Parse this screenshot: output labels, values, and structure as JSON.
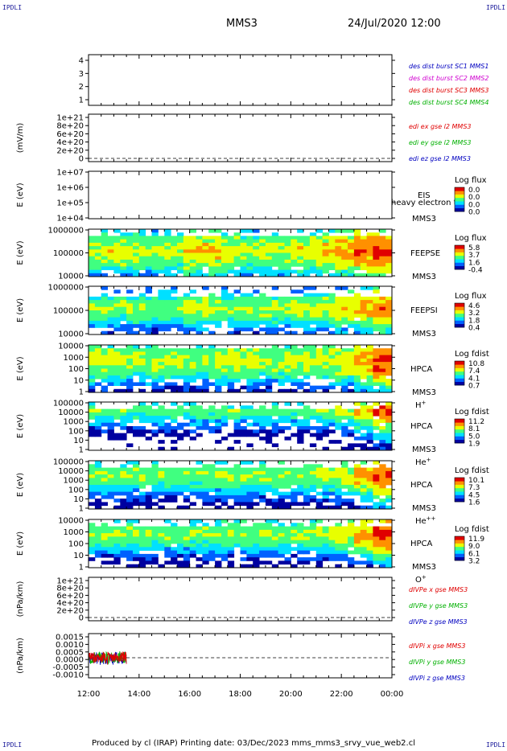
{
  "header": {
    "corner_label": "IPDLI",
    "spacecraft": "MMS3",
    "datetime": "24/Jul/2020 12:00"
  },
  "footer": {
    "text": "Produced by cl (IRAP)   Printing date: 03/Dec/2023   mms_mms3_srvy_vue_web2.cl"
  },
  "colors": {
    "red": "#e00000",
    "green": "#00b000",
    "blue": "#0000c0",
    "magenta": "#d000d0",
    "colorbar": [
      "#0000a0",
      "#0060ff",
      "#00e0ff",
      "#40ff80",
      "#e8ff00",
      "#ff9000",
      "#e00000"
    ]
  },
  "chart_data": {
    "type": "heatmap",
    "x_ticks": [
      "12:00",
      "14:00",
      "16:00",
      "18:00",
      "20:00",
      "22:00",
      "00:00"
    ],
    "xlim": [
      "12:00",
      "00:00"
    ],
    "panels": [
      {
        "kind": "line",
        "yticks": [
          "1",
          "2",
          "3",
          "4"
        ],
        "legend": [
          {
            "text": "des dist burst SC1 MMS1",
            "color": "blue"
          },
          {
            "text": "des dist burst SC2 MMS2",
            "color": "magenta"
          },
          {
            "text": "des dist burst SC3 MMS3",
            "color": "red"
          },
          {
            "text": "des dist burst SC4 MMS4",
            "color": "green"
          }
        ]
      },
      {
        "kind": "line",
        "ylabel": "(mV/m)",
        "yticks": [
          "1e+21",
          "8e+20",
          "6e+20",
          "4e+20",
          "2e+20",
          "0"
        ],
        "legend": [
          {
            "text": "edi ex gse l2 MMS3",
            "color": "red"
          },
          {
            "text": "edi ey gse l2 MMS3",
            "color": "green"
          },
          {
            "text": "edi ez gse l2 MMS3",
            "color": "blue"
          }
        ]
      },
      {
        "kind": "spectrogram",
        "ylabel": "E (eV)",
        "yticks": [
          "1e+07",
          "1e+06",
          "1e+05",
          "1e+04"
        ],
        "labels": [
          "EIS",
          "MMS3"
        ],
        "overlay": "heavy electron to",
        "cbar_title": "Log flux",
        "cbar_ticks": [
          "0.0",
          "0.0",
          "0.0",
          "0.0"
        ],
        "intensity_profile": [],
        "band": [
          0,
          0
        ]
      },
      {
        "kind": "spectrogram",
        "ylabel": "E (eV)",
        "yticks": [
          "1000000",
          "100000",
          "10000"
        ],
        "labels": [
          "FEEPSE",
          "MMS3"
        ],
        "cbar_title": "Log flux",
        "cbar_ticks": [
          "5.8",
          "3.7",
          "1.6",
          "-0.4"
        ],
        "intensity_profile": [
          0.55,
          0.55,
          0.5,
          0.45,
          0.5,
          0.7,
          0.7,
          0.55,
          0.5,
          0.5,
          0.55,
          0.6,
          0.65,
          0.75,
          0.9,
          1.0
        ],
        "band": [
          0.12,
          0.72
        ]
      },
      {
        "kind": "spectrogram",
        "ylabel": "E (eV)",
        "yticks": [
          "1000000",
          "100000",
          "10000"
        ],
        "labels": [
          "FEEPSI",
          "MMS3"
        ],
        "cbar_title": "Log flux",
        "cbar_ticks": [
          "4.6",
          "3.2",
          "1.8",
          "0.4"
        ],
        "intensity_profile": [
          0.4,
          0.4,
          0.4,
          0.35,
          0.35,
          0.5,
          0.5,
          0.4,
          0.4,
          0.45,
          0.45,
          0.5,
          0.5,
          0.6,
          0.7,
          0.85
        ],
        "band": [
          0.22,
          0.62
        ]
      },
      {
        "kind": "spectrogram",
        "ylabel": "E (eV)",
        "yticks": [
          "10000",
          "1000",
          "100",
          "10",
          "1"
        ],
        "labels": [
          "HPCA",
          "MMS3",
          "H+"
        ],
        "cbar_title": "Log fdist",
        "cbar_ticks": [
          "10.8",
          "7.4",
          "4.1",
          "0.7"
        ],
        "intensity_profile": [
          0.55,
          0.55,
          0.5,
          0.5,
          0.5,
          0.45,
          0.5,
          0.55,
          0.55,
          0.5,
          0.5,
          0.5,
          0.55,
          0.6,
          0.8,
          1.0
        ],
        "band": [
          0.05,
          0.55
        ]
      },
      {
        "kind": "spectrogram",
        "ylabel": "E (eV)",
        "yticks": [
          "100000",
          "10000",
          "1000",
          "100",
          "10",
          "1"
        ],
        "labels": [
          "HPCA",
          "MMS3",
          "He+"
        ],
        "cbar_title": "Log fdist",
        "cbar_ticks": [
          "11.2",
          "8.1",
          "5.0",
          "1.9"
        ],
        "intensity_profile": [
          0.3,
          0.3,
          0.25,
          0.3,
          0.3,
          0.3,
          0.3,
          0.3,
          0.3,
          0.3,
          0.3,
          0.35,
          0.35,
          0.45,
          0.7,
          0.95
        ],
        "band": [
          0.08,
          0.22
        ]
      },
      {
        "kind": "spectrogram",
        "ylabel": "E (eV)",
        "yticks": [
          "100000",
          "10000",
          "1000",
          "100",
          "10",
          "1"
        ],
        "labels": [
          "HPCA",
          "MMS3",
          "He++"
        ],
        "cbar_title": "Log fdist",
        "cbar_ticks": [
          "10.1",
          "7.3",
          "4.5",
          "1.6"
        ],
        "intensity_profile": [
          0.4,
          0.4,
          0.4,
          0.35,
          0.35,
          0.4,
          0.4,
          0.4,
          0.4,
          0.4,
          0.4,
          0.4,
          0.45,
          0.55,
          0.75,
          0.95
        ],
        "band": [
          0.08,
          0.45
        ]
      },
      {
        "kind": "spectrogram",
        "ylabel": "E (eV)",
        "yticks": [
          "10000",
          "1000",
          "100",
          "10",
          "1"
        ],
        "labels": [
          "HPCA",
          "MMS3",
          "O+"
        ],
        "cbar_title": "Log fdist",
        "cbar_ticks": [
          "11.9",
          "9.0",
          "6.1",
          "3.2"
        ],
        "intensity_profile": [
          0.4,
          0.4,
          0.4,
          0.4,
          0.35,
          0.4,
          0.4,
          0.4,
          0.4,
          0.4,
          0.4,
          0.45,
          0.5,
          0.6,
          0.8,
          1.0
        ],
        "band": [
          0.08,
          0.45
        ]
      },
      {
        "kind": "line",
        "ylabel": "(nPa/km)",
        "yticks": [
          "1e+21",
          "8e+20",
          "6e+20",
          "4e+20",
          "2e+20",
          "0"
        ],
        "legend": [
          {
            "text": "dIVPe x gse MMS3",
            "color": "red"
          },
          {
            "text": "dIVPe y gse MMS3",
            "color": "green"
          },
          {
            "text": "dIVPe z gse MMS3",
            "color": "blue"
          }
        ]
      },
      {
        "kind": "line",
        "ylabel": "(nPa/km)",
        "yticks": [
          "0.0015",
          "0.0010",
          "0.0005",
          "0.0000",
          "-0.0005",
          "-0.0010"
        ],
        "ylim": [
          -0.00125,
          0.0015
        ],
        "legend": [
          {
            "text": "dIVPi x gse MMS3",
            "color": "red"
          },
          {
            "text": "dIVPi y gse MMS3",
            "color": "green"
          },
          {
            "text": "dIVPi z gse MMS3",
            "color": "blue"
          }
        ],
        "series_span": [
          "12:00",
          "13:30"
        ],
        "series_amplitude": 0.00045
      }
    ]
  }
}
